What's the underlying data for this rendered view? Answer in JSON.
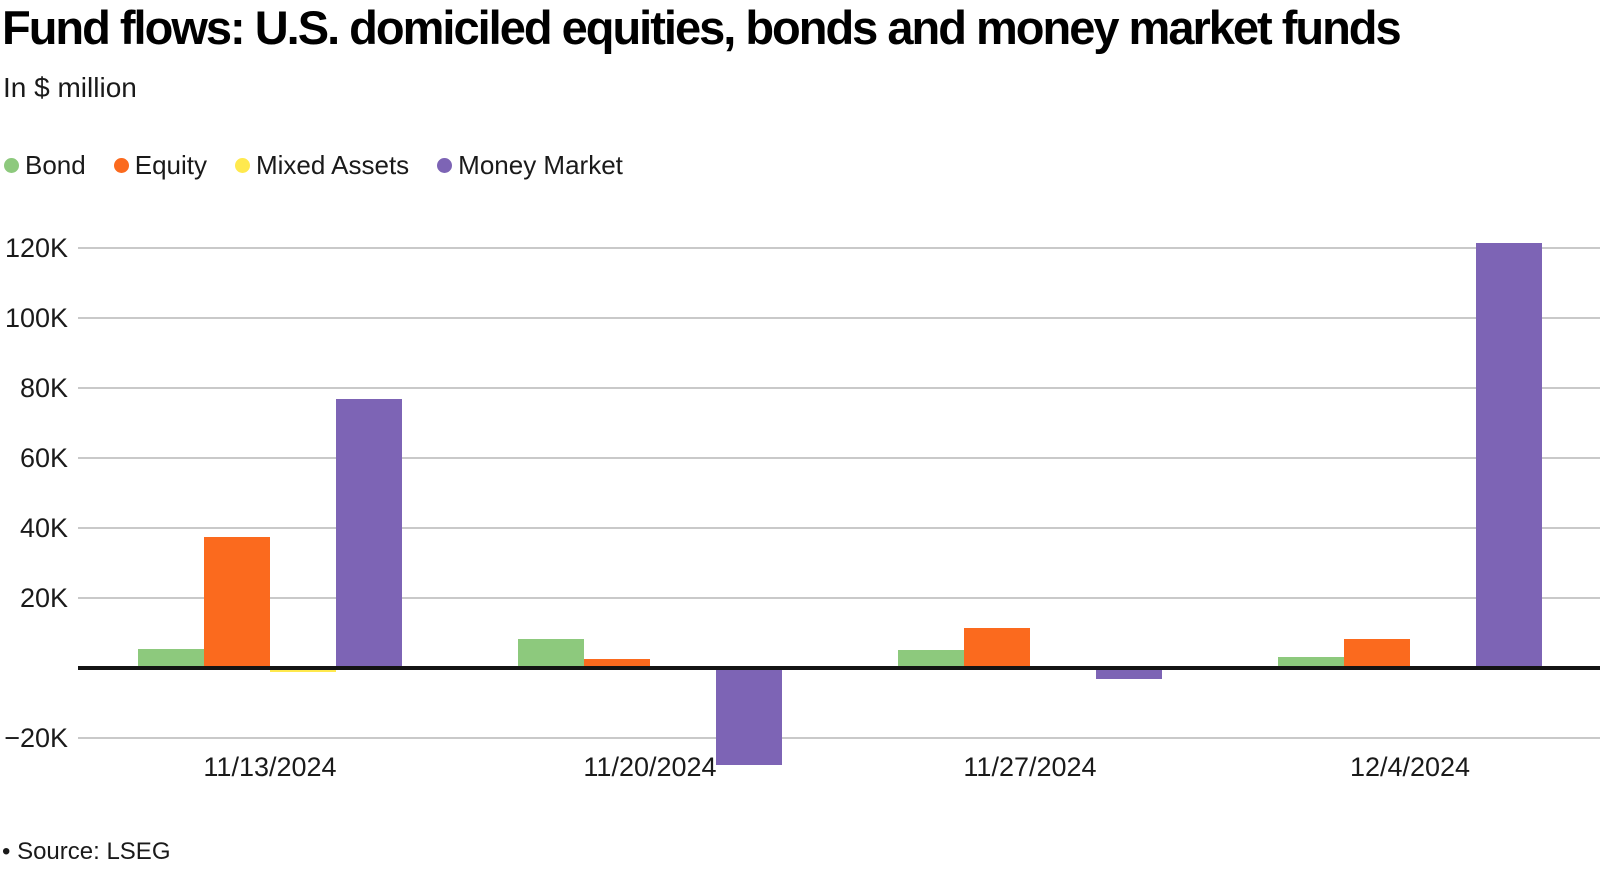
{
  "title": "Fund flows: U.S. domiciled equities, bonds and money market funds",
  "subtitle": "In $ million",
  "source_note": "• Source: LSEG",
  "colors": {
    "bond": "#8dc97d",
    "equity": "#fb6a1e",
    "mixed_assets": "#ffe94e",
    "money_market": "#7d64b5",
    "gridline": "#c9c9c9",
    "axis": "#141414",
    "text": "#1a1a1a"
  },
  "legend": {
    "items": [
      {
        "label": "Bond",
        "color_key": "bond"
      },
      {
        "label": "Equity",
        "color_key": "equity"
      },
      {
        "label": "Mixed Assets",
        "color_key": "mixed_assets"
      },
      {
        "label": "Money Market",
        "color_key": "money_market"
      }
    ]
  },
  "chart_data": {
    "type": "bar",
    "title": "Fund flows: U.S. domiciled equities, bonds and money market funds",
    "xlabel": "",
    "ylabel": "In $ million",
    "categories": [
      "11/13/2024",
      "11/20/2024",
      "11/27/2024",
      "12/4/2024"
    ],
    "series": [
      {
        "name": "Bond",
        "color_key": "bond",
        "values": [
          5500,
          8400,
          5100,
          3100
        ]
      },
      {
        "name": "Equity",
        "color_key": "equity",
        "values": [
          37300,
          2700,
          11400,
          8300
        ]
      },
      {
        "name": "Mixed Assets",
        "color_key": "mixed_assets",
        "values": [
          -600,
          0,
          0,
          0
        ]
      },
      {
        "name": "Money Market",
        "color_key": "money_market",
        "values": [
          77000,
          -27100,
          -2600,
          121400
        ]
      }
    ],
    "y_ticks": [
      {
        "label": "120K",
        "value": 120000
      },
      {
        "label": "100K",
        "value": 100000
      },
      {
        "label": "80K",
        "value": 80000
      },
      {
        "label": "60K",
        "value": 60000
      },
      {
        "label": "40K",
        "value": 40000
      },
      {
        "label": "20K",
        "value": 20000
      },
      {
        "label": "−20K",
        "value": -20000
      }
    ],
    "ylim": [
      -27500,
      122000
    ],
    "grid": true,
    "legend_position": "top-left"
  }
}
